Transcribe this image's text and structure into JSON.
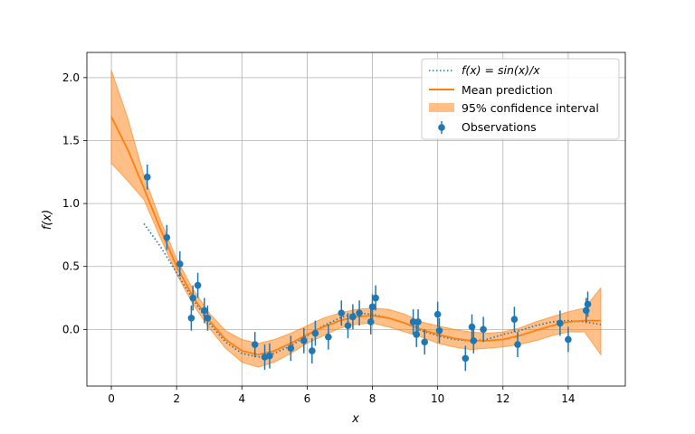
{
  "chart_data": {
    "type": "line",
    "title": "",
    "xlabel": "x",
    "ylabel": "f(x)",
    "xlim": [
      -0.75,
      15.75
    ],
    "ylim": [
      -0.45,
      2.2
    ],
    "xticks": [
      0,
      2,
      4,
      6,
      8,
      10,
      12,
      14
    ],
    "yticks": [
      0.0,
      0.5,
      1.0,
      1.5,
      2.0
    ],
    "xtick_labels": [
      "0",
      "2",
      "4",
      "6",
      "8",
      "10",
      "12",
      "14"
    ],
    "ytick_labels": [
      "0.0",
      "0.5",
      "1.0",
      "1.5",
      "2.0"
    ],
    "grid": true,
    "legend_position": "top-right",
    "colors": {
      "observations": "#1f77b4",
      "mean": "#ff7f0e",
      "band": "#ff7f0e"
    },
    "series": [
      {
        "name": "f(x) = sin(x)/x",
        "kind": "function",
        "style": "dotted",
        "x": [
          1.0,
          1.5,
          2.0,
          2.5,
          3.0,
          3.5,
          4.0,
          4.5,
          5.0,
          5.5,
          6.0,
          6.5,
          7.0,
          7.5,
          8.0,
          8.5,
          9.0,
          9.5,
          10.0,
          10.5,
          11.0,
          11.5,
          12.0,
          12.5,
          13.0,
          13.5,
          14.0,
          14.5,
          15.0
        ],
        "y": [
          0.84,
          0.66,
          0.45,
          0.24,
          0.05,
          -0.1,
          -0.19,
          -0.22,
          -0.19,
          -0.13,
          -0.05,
          0.03,
          0.09,
          0.13,
          0.12,
          0.09,
          0.05,
          -0.01,
          -0.05,
          -0.08,
          -0.09,
          -0.08,
          -0.04,
          -0.01,
          0.03,
          0.06,
          0.07,
          0.06,
          0.04
        ]
      },
      {
        "name": "Mean prediction",
        "kind": "line",
        "x": [
          0,
          0.5,
          1.0,
          1.5,
          2.0,
          2.5,
          3.0,
          3.5,
          4.0,
          4.5,
          5.0,
          5.5,
          6.0,
          6.5,
          7.0,
          7.5,
          8.0,
          8.5,
          9.0,
          9.5,
          10.0,
          10.5,
          11.0,
          11.5,
          12.0,
          12.5,
          13.0,
          13.5,
          14.0,
          14.5,
          15.0
        ],
        "y": [
          1.69,
          1.43,
          1.12,
          0.8,
          0.5,
          0.26,
          0.07,
          -0.08,
          -0.17,
          -0.2,
          -0.17,
          -0.11,
          -0.04,
          0.02,
          0.07,
          0.1,
          0.11,
          0.09,
          0.05,
          0.0,
          -0.04,
          -0.07,
          -0.09,
          -0.09,
          -0.08,
          -0.05,
          -0.01,
          0.03,
          0.06,
          0.07,
          0.07
        ]
      },
      {
        "name": "95% confidence interval",
        "kind": "band",
        "x": [
          0,
          0.5,
          1.0,
          1.5,
          2.0,
          2.5,
          3.0,
          3.5,
          4.0,
          4.5,
          5.0,
          5.5,
          6.0,
          6.5,
          7.0,
          7.5,
          8.0,
          8.5,
          9.0,
          9.5,
          10.0,
          10.5,
          11.0,
          11.5,
          12.0,
          12.5,
          13.0,
          13.5,
          14.0,
          14.5,
          15.0
        ],
        "lower": [
          1.32,
          1.18,
          1.03,
          0.73,
          0.44,
          0.2,
          0.01,
          -0.15,
          -0.26,
          -0.3,
          -0.26,
          -0.19,
          -0.11,
          -0.05,
          0.01,
          0.04,
          0.05,
          0.02,
          -0.02,
          -0.06,
          -0.11,
          -0.14,
          -0.16,
          -0.15,
          -0.14,
          -0.12,
          -0.09,
          -0.05,
          -0.02,
          -0.02,
          -0.2
        ],
        "upper": [
          2.06,
          1.68,
          1.22,
          0.87,
          0.56,
          0.32,
          0.13,
          -0.01,
          -0.08,
          -0.11,
          -0.08,
          -0.03,
          0.03,
          0.09,
          0.13,
          0.16,
          0.17,
          0.16,
          0.12,
          0.06,
          0.03,
          0.0,
          -0.02,
          -0.03,
          -0.02,
          0.01,
          0.06,
          0.1,
          0.14,
          0.17,
          0.33
        ]
      },
      {
        "name": "Observations",
        "kind": "errorbar",
        "x": [
          1.1,
          1.7,
          2.1,
          2.45,
          2.5,
          2.65,
          2.85,
          2.95,
          4.4,
          4.7,
          4.85,
          5.5,
          5.9,
          6.15,
          6.25,
          6.65,
          7.05,
          7.25,
          7.4,
          7.6,
          7.95,
          8.0,
          8.1,
          9.25,
          9.35,
          9.4,
          9.6,
          10.0,
          10.05,
          10.85,
          11.05,
          11.1,
          11.4,
          12.35,
          12.45,
          13.75,
          14.0,
          14.55,
          14.6
        ],
        "y": [
          1.21,
          0.73,
          0.52,
          0.09,
          0.25,
          0.35,
          0.15,
          0.09,
          -0.12,
          -0.22,
          -0.21,
          -0.15,
          -0.09,
          -0.17,
          -0.03,
          -0.06,
          0.13,
          0.03,
          0.1,
          0.13,
          0.06,
          0.18,
          0.25,
          0.06,
          -0.04,
          0.06,
          -0.1,
          0.12,
          -0.01,
          -0.23,
          0.02,
          -0.09,
          0.0,
          0.08,
          -0.12,
          0.05,
          -0.08,
          0.15,
          0.2
        ],
        "err": [
          0.1,
          0.1,
          0.1,
          0.1,
          0.1,
          0.1,
          0.1,
          0.1,
          0.1,
          0.1,
          0.1,
          0.1,
          0.1,
          0.1,
          0.1,
          0.1,
          0.1,
          0.1,
          0.1,
          0.1,
          0.1,
          0.1,
          0.1,
          0.1,
          0.1,
          0.1,
          0.1,
          0.1,
          0.1,
          0.1,
          0.1,
          0.1,
          0.1,
          0.1,
          0.1,
          0.1,
          0.1,
          0.1,
          0.1
        ]
      }
    ]
  }
}
